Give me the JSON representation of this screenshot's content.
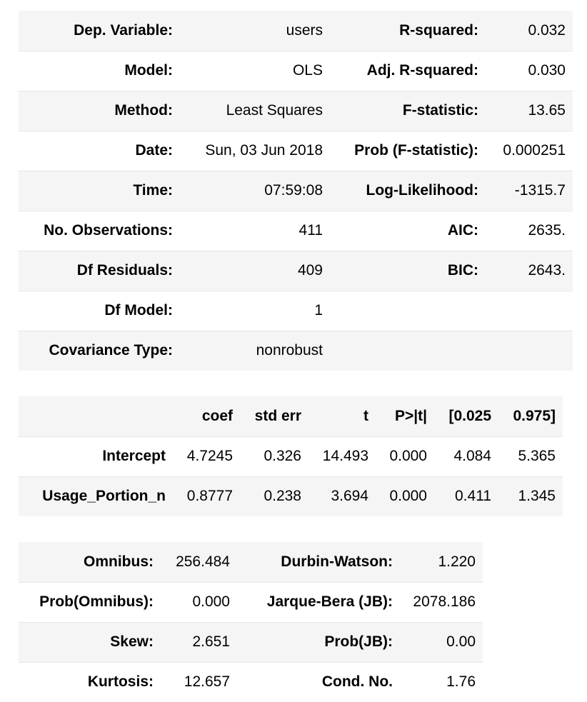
{
  "summary": {
    "rows": [
      {
        "l1": "Dep. Variable:",
        "v1": "users",
        "l2": "R-squared:",
        "v2": "0.032"
      },
      {
        "l1": "Model:",
        "v1": "OLS",
        "l2": "Adj. R-squared:",
        "v2": "0.030"
      },
      {
        "l1": "Method:",
        "v1": "Least Squares",
        "l2": "F-statistic:",
        "v2": "13.65"
      },
      {
        "l1": "Date:",
        "v1": "Sun, 03 Jun 2018",
        "l2": "Prob (F-statistic):",
        "v2": "0.000251"
      },
      {
        "l1": "Time:",
        "v1": "07:59:08",
        "l2": "Log-Likelihood:",
        "v2": "-1315.7"
      },
      {
        "l1": "No. Observations:",
        "v1": "411",
        "l2": "AIC:",
        "v2": "2635."
      },
      {
        "l1": "Df Residuals:",
        "v1": "409",
        "l2": "BIC:",
        "v2": "2643."
      },
      {
        "l1": "Df Model:",
        "v1": "1",
        "l2": "",
        "v2": ""
      },
      {
        "l1": "Covariance Type:",
        "v1": "nonrobust",
        "l2": "",
        "v2": ""
      }
    ]
  },
  "coefficients": {
    "headers": [
      "",
      "coef",
      "std err",
      "t",
      "P>|t|",
      "[0.025",
      "0.975]"
    ],
    "rows": [
      {
        "name": "Intercept",
        "values": [
          "4.7245",
          "0.326",
          "14.493",
          "0.000",
          "4.084",
          "5.365"
        ]
      },
      {
        "name": "Usage_Portion_n",
        "values": [
          "0.8777",
          "0.238",
          "3.694",
          "0.000",
          "0.411",
          "1.345"
        ]
      }
    ]
  },
  "diagnostics": {
    "rows": [
      {
        "l1": "Omnibus:",
        "v1": "256.484",
        "l2": "Durbin-Watson:",
        "v2": "1.220"
      },
      {
        "l1": "Prob(Omnibus):",
        "v1": "0.000",
        "l2": "Jarque-Bera (JB):",
        "v2": "2078.186"
      },
      {
        "l1": "Skew:",
        "v1": "2.651",
        "l2": "Prob(JB):",
        "v2": "0.00"
      },
      {
        "l1": "Kurtosis:",
        "v1": "12.657",
        "l2": "Cond. No.",
        "v2": "1.76"
      }
    ]
  }
}
